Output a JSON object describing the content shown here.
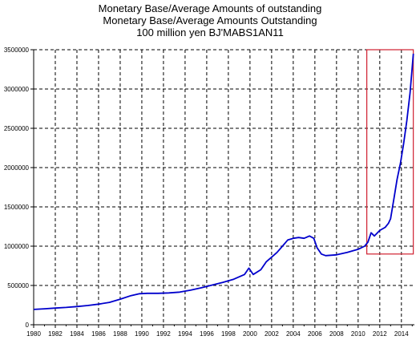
{
  "chart_data": {
    "type": "line",
    "title_lines": [
      "Monetary Base/Average Amounts of outstanding",
      "Monetary Base/Average Amounts Outstanding",
      "100 million yen BJ'MABS1AN11"
    ],
    "xlabel": "",
    "ylabel": "",
    "xlim": [
      1980,
      2015.2
    ],
    "ylim": [
      0,
      3500000
    ],
    "x_ticks": [
      1980,
      1982,
      1984,
      1986,
      1988,
      1990,
      1992,
      1994,
      1996,
      1998,
      2000,
      2002,
      2004,
      2006,
      2008,
      2010,
      2012,
      2014
    ],
    "y_ticks": [
      0,
      500000,
      1000000,
      1500000,
      2000000,
      2500000,
      3000000,
      3500000
    ],
    "grid": true,
    "colors": {
      "line": "#0000cc",
      "highlight": "#d02030",
      "grid": "#000000"
    },
    "highlight": {
      "x": [
        2010.8,
        2015.1
      ],
      "y": [
        900000,
        3500000
      ]
    },
    "series": [
      {
        "name": "",
        "points": [
          [
            1980.0,
            195000
          ],
          [
            1981.0,
            203000
          ],
          [
            1982.0,
            212000
          ],
          [
            1983.0,
            220000
          ],
          [
            1984.0,
            232000
          ],
          [
            1985.0,
            245000
          ],
          [
            1986.0,
            262000
          ],
          [
            1987.0,
            285000
          ],
          [
            1988.0,
            325000
          ],
          [
            1989.0,
            370000
          ],
          [
            1989.8,
            395000
          ],
          [
            1990.5,
            400000
          ],
          [
            1991.5,
            400000
          ],
          [
            1992.5,
            405000
          ],
          [
            1993.5,
            415000
          ],
          [
            1994.5,
            440000
          ],
          [
            1995.5,
            470000
          ],
          [
            1996.5,
            505000
          ],
          [
            1997.5,
            540000
          ],
          [
            1998.5,
            580000
          ],
          [
            1999.5,
            640000
          ],
          [
            1999.9,
            720000
          ],
          [
            2000.3,
            640000
          ],
          [
            2001.0,
            700000
          ],
          [
            2001.5,
            800000
          ],
          [
            2002.0,
            860000
          ],
          [
            2002.5,
            920000
          ],
          [
            2003.0,
            1000000
          ],
          [
            2003.5,
            1080000
          ],
          [
            2004.0,
            1100000
          ],
          [
            2004.5,
            1110000
          ],
          [
            2005.0,
            1100000
          ],
          [
            2005.5,
            1130000
          ],
          [
            2005.9,
            1100000
          ],
          [
            2006.2,
            980000
          ],
          [
            2006.6,
            900000
          ],
          [
            2007.0,
            880000
          ],
          [
            2008.0,
            890000
          ],
          [
            2009.0,
            920000
          ],
          [
            2010.0,
            960000
          ],
          [
            2010.6,
            1000000
          ],
          [
            2010.9,
            1050000
          ],
          [
            2011.2,
            1170000
          ],
          [
            2011.5,
            1130000
          ],
          [
            2012.0,
            1200000
          ],
          [
            2012.5,
            1240000
          ],
          [
            2012.8,
            1290000
          ],
          [
            2013.0,
            1350000
          ],
          [
            2013.3,
            1600000
          ],
          [
            2013.6,
            1850000
          ],
          [
            2013.9,
            2050000
          ],
          [
            2014.2,
            2300000
          ],
          [
            2014.5,
            2600000
          ],
          [
            2014.8,
            2950000
          ],
          [
            2015.1,
            3450000
          ]
        ]
      }
    ]
  }
}
